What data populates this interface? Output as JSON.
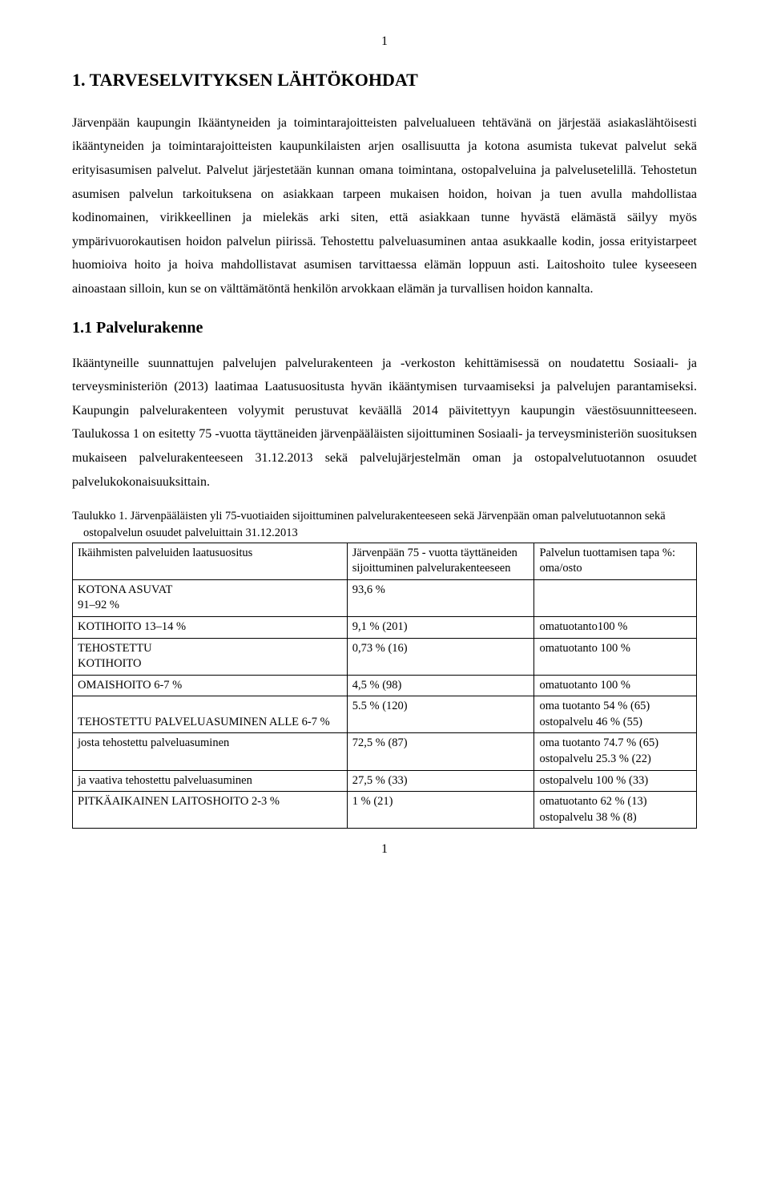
{
  "page": {
    "top_number": "1",
    "bottom_number": "1"
  },
  "section": {
    "title": "1. TARVESELVITYKSEN LÄHTÖKOHDAT",
    "para1": "Järvenpään kaupungin Ikääntyneiden ja toimintarajoitteisten palvelualueen tehtävänä on järjestää asiakaslähtöisesti ikääntyneiden ja toimintarajoitteisten kaupunkilaisten arjen osallisuutta ja kotona asumista tukevat palvelut sekä erityisasumisen palvelut. Palvelut järjestetään kunnan omana toimintana, ostopalveluina ja palvelusetelillä. Tehostetun asumisen palvelun tarkoituksena on asiakkaan tarpeen mukaisen hoidon, hoivan ja tuen avulla mahdollistaa kodinomainen, virikkeellinen ja mielekäs arki siten, että asiakkaan tunne hyvästä elämästä säilyy myös ympärivuorokautisen hoidon palvelun piirissä. Tehostettu palveluasuminen antaa asukkaalle kodin, jossa erityistarpeet huomioiva hoito ja hoiva mahdollistavat asumisen tarvittaessa elämän loppuun asti. Laitoshoito tulee kyseeseen ainoastaan silloin, kun se on välttämätöntä henkilön arvokkaan elämän ja turvallisen hoidon kannalta."
  },
  "subsection": {
    "title": "1.1 Palvelurakenne",
    "para1": "Ikääntyneille suunnattujen palvelujen palvelurakenteen ja -verkoston kehittämisessä on noudatettu Sosiaali- ja terveysministeriön (2013) laatimaa Laatusuositusta hyvän ikääntymisen turvaamiseksi ja palvelujen parantamiseksi. Kaupungin palvelurakenteen volyymit perustuvat keväällä 2014 päivitettyyn kaupungin väestösuunnitteeseen. Taulukossa 1 on esitetty 75 -vuotta täyttäneiden järvenpääläisten sijoittuminen Sosiaali- ja terveysministeriön suosituksen mukaiseen palvelurakenteeseen 31.12.2013 sekä palvelujärjestelmän oman ja ostopalvelutuotannon osuudet palvelukokonaisuuksittain."
  },
  "table": {
    "caption": "Taulukko 1. Järvenpääläisten yli 75-vuotiaiden sijoittuminen palvelurakenteeseen sekä Järvenpään oman palvelutuotannon sekä ostopalvelun osuudet palveluittain 31.12.2013",
    "header": {
      "c1": "Ikäihmisten palveluiden laatusuositus",
      "c2": "Järvenpään 75 - vuotta täyttäneiden sijoittuminen palvelurakenteeseen",
      "c3": "Palvelun tuottamisen tapa %: oma/osto"
    },
    "rows": [
      {
        "c1": "KOTONA ASUVAT\n91–92 %",
        "c2": "93,6 %",
        "c3": ""
      },
      {
        "c1": "KOTIHOITO 13–14 %",
        "c2": " 9,1 % (201)",
        "c3": "omatuotanto100 %"
      },
      {
        "c1": "TEHOSTETTU\nKOTIHOITO",
        "c2": "0,73 % (16)",
        "c3": "omatuotanto 100 %"
      },
      {
        "c1": "OMAISHOITO 6-7 %",
        "c2": "4,5 % (98)",
        "c3": "omatuotanto 100 %"
      },
      {
        "c1": "\nTEHOSTETTU PALVELUASUMINEN ALLE 6-7 %",
        "c2": "5.5 % (120)",
        "c3": "oma tuotanto 54 % (65)\nostopalvelu 46 % (55)"
      },
      {
        "c1": "josta tehostettu palveluasuminen",
        "c2": "72,5 % (87)",
        "c3": "oma tuotanto 74.7 % (65)\nostopalvelu 25.3 % (22)"
      },
      {
        "c1": "ja vaativa tehostettu palveluasuminen",
        "c2": "27,5 % (33)",
        "c3": "ostopalvelu 100 % (33)"
      },
      {
        "c1": "PITKÄAIKAINEN LAITOSHOITO 2-3 %",
        "c2": "1 % (21)",
        "c3": "omatuotanto 62 % (13)\nostopalvelu 38 % (8)"
      }
    ],
    "styling": {
      "border_color": "#000000",
      "font_size_pt": 11,
      "col_widths_pct": [
        44,
        30,
        26
      ]
    }
  },
  "typography": {
    "body_font": "Times New Roman",
    "body_size_pt": 12,
    "h1_size_pt": 16,
    "h2_size_pt": 15,
    "line_height": 1.85,
    "text_color": "#000000",
    "background_color": "#ffffff"
  }
}
